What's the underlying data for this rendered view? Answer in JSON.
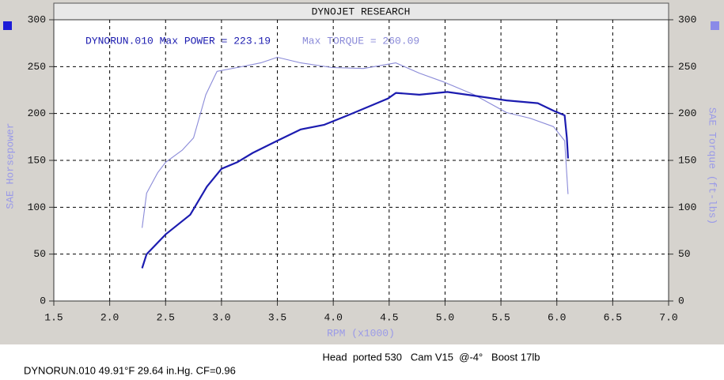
{
  "chart_data": {
    "type": "line",
    "title": "DYNOJET RESEARCH",
    "x_label": "RPM (x1000)",
    "y_label": "SAE Horsepower",
    "y2_label": "SAE Torque (ft-lbs)",
    "annotations": [
      "DYNORUN.010 Max POWER = 223.19",
      "Max TORQUE = 260.09"
    ],
    "footer": [
      "Head  ported 530   Cam V15  @-4°   Boost 17lb",
      "DYNORUN.010 49.91°F 29.64 in.Hg. CF=0.96"
    ],
    "xlim": [
      1.5,
      7.0
    ],
    "xticks": [
      1.5,
      {
        "value": 2,
        "label": "2.0"
      },
      2.5,
      {
        "value": 3,
        "label": "3.0"
      },
      3.5,
      {
        "value": 4,
        "label": "4.0"
      },
      4.5,
      {
        "value": 5,
        "label": "5.0"
      },
      5.5,
      {
        "value": 6,
        "label": "6.0"
      },
      6.5,
      {
        "value": 7,
        "label": "7.0"
      }
    ],
    "ylim": [
      0,
      300
    ],
    "yticks": [
      0,
      50,
      100,
      150,
      200,
      250,
      300
    ],
    "y2lim": [
      0,
      300
    ],
    "y2ticks": [
      0,
      50,
      100,
      150,
      200,
      250,
      300
    ],
    "grid": true,
    "series": [
      {
        "name": "SAE Horsepower",
        "color": "#1c1cb0",
        "x": [
          2.29,
          2.33,
          2.5,
          2.72,
          2.87,
          3.0,
          3.14,
          3.28,
          3.5,
          3.71,
          3.92,
          4.13,
          4.35,
          4.49,
          4.56,
          4.77,
          5.02,
          5.26,
          5.55,
          5.83,
          5.97,
          6.07,
          6.09,
          6.1
        ],
        "values": [
          35,
          50,
          71,
          92,
          122,
          141,
          148,
          158,
          171,
          183,
          188,
          198,
          209,
          216,
          222,
          220,
          223,
          219,
          214,
          211,
          203,
          198,
          174,
          152
        ]
      },
      {
        "name": "SAE Torque",
        "color": "#8a8ad8",
        "axis": "y2",
        "x": [
          2.29,
          2.33,
          2.43,
          2.5,
          2.65,
          2.75,
          2.86,
          2.96,
          3.14,
          3.35,
          3.5,
          3.71,
          3.99,
          4.27,
          4.56,
          4.77,
          4.98,
          5.26,
          5.55,
          5.76,
          5.97,
          6.07,
          6.1
        ],
        "values": [
          78,
          115,
          137,
          148,
          161,
          174,
          220,
          245,
          249,
          254,
          260,
          254,
          249,
          248,
          254,
          243,
          234,
          220,
          201,
          195,
          186,
          171,
          114
        ]
      }
    ]
  }
}
